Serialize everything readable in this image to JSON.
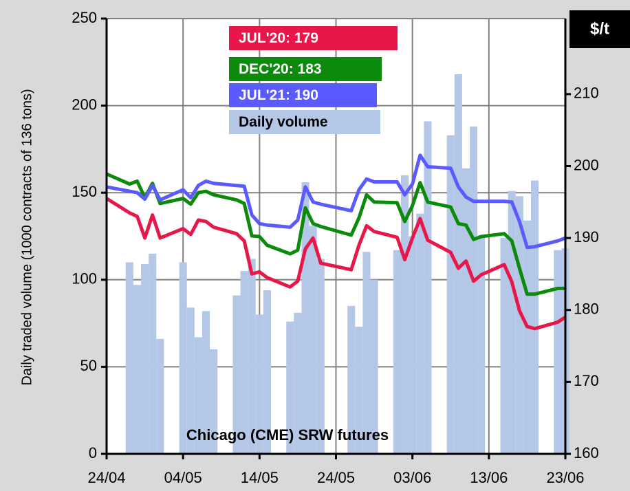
{
  "chart_data": {
    "type": "line",
    "annotation": "Chicago (CME) SRW futures",
    "ylabel": "Daily traded volume  (1000 contracts of 136 tons)",
    "y2label": "$/t",
    "x": [
      "24/04",
      "27/04",
      "28/04",
      "29/04",
      "30/04",
      "01/05",
      "04/05",
      "05/05",
      "06/05",
      "07/05",
      "08/05",
      "11/05",
      "12/05",
      "13/05",
      "14/05",
      "15/05",
      "18/05",
      "19/05",
      "20/05",
      "21/05",
      "22/05",
      "26/05",
      "27/05",
      "28/05",
      "29/05",
      "01/06",
      "02/06",
      "03/06",
      "04/06",
      "05/06",
      "08/06",
      "09/06",
      "10/06",
      "11/06",
      "12/06",
      "15/06",
      "16/06",
      "17/06",
      "18/06",
      "19/06",
      "22/06",
      "23/06"
    ],
    "xlim": [
      "24/04",
      "23/06"
    ],
    "xticks": [
      "24/04",
      "04/05",
      "14/05",
      "24/05",
      "03/06",
      "13/06",
      "23/06"
    ],
    "ylim": [
      0,
      250
    ],
    "yticks": [
      0,
      50,
      100,
      150,
      200,
      250
    ],
    "y2lim": [
      160,
      220.5
    ],
    "y2ticks": [
      160,
      170,
      180,
      190,
      200,
      210
    ],
    "grid": true,
    "series": [
      {
        "name": "JUL'20: 179",
        "color": "#e8174a",
        "axis": "y2",
        "values": [
          195.5,
          193.5,
          193,
          190,
          193.2,
          190,
          191.3,
          190.5,
          192.5,
          192.3,
          191.5,
          190.6,
          189.6,
          185,
          185.3,
          184.5,
          183.2,
          184,
          188.5,
          190,
          186.5,
          185.6,
          189,
          191.7,
          190.9,
          190.1,
          187,
          190,
          192.7,
          189.7,
          188,
          185.8,
          186.8,
          184,
          184.9,
          186.3,
          183.9,
          179.9,
          177.7,
          177.4,
          178.3,
          179
        ]
      },
      {
        "name": "DEC'20: 183",
        "color": "#0c8a0c",
        "axis": "y2",
        "values": [
          198.9,
          197.5,
          197.9,
          195.6,
          197.6,
          194.8,
          195.5,
          194.7,
          196.3,
          196.5,
          196,
          195.3,
          194.8,
          190.3,
          190.2,
          189,
          187.8,
          188.3,
          194.2,
          192,
          191.6,
          190.4,
          192.8,
          196,
          195,
          194.9,
          192.3,
          194.5,
          197.7,
          195,
          194.3,
          192,
          191.8,
          189.8,
          190.2,
          190.6,
          189.6,
          185.8,
          182.2,
          182.2,
          183,
          183
        ]
      },
      {
        "name": "JUL'21: 190",
        "color": "#5a5aff",
        "axis": "y2",
        "values": [
          197.1,
          196.5,
          196.3,
          195.4,
          197.3,
          195.3,
          196.7,
          195.6,
          197.3,
          197.9,
          197.6,
          197.3,
          197.2,
          193.2,
          192,
          191.8,
          191.5,
          192.5,
          197.1,
          195,
          194.7,
          193.8,
          196.7,
          198.2,
          197.8,
          197.8,
          196,
          197.5,
          201.5,
          199.9,
          199.7,
          197.1,
          195.7,
          195.1,
          195.1,
          195.1,
          195,
          192.3,
          188.7,
          188.8,
          189.6,
          190
        ]
      },
      {
        "name": "Daily volume",
        "color": "#b4c7e7",
        "type": "bar",
        "values": [
          null,
          110,
          97,
          109,
          115,
          66,
          110,
          84,
          67,
          82,
          60,
          91,
          105,
          112,
          80,
          94,
          76,
          81,
          156,
          131,
          112,
          85,
          73,
          116,
          100,
          117,
          160,
          125,
          138,
          191,
          183,
          218,
          164,
          188,
          124,
          124,
          151,
          148,
          134,
          157,
          117,
          118
        ]
      }
    ]
  }
}
